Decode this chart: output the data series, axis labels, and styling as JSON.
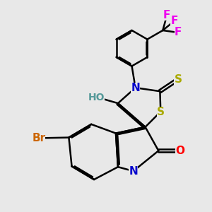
{
  "background_color": "#e8e8e8",
  "bond_color": "#000000",
  "bond_width": 1.8,
  "colors": {
    "N": "#0000cc",
    "O": "#ff0000",
    "S": "#aaaa00",
    "Br": "#cc6600",
    "F": "#ee00ee",
    "H": "#559999",
    "C": "#000000"
  },
  "font_size": 11
}
